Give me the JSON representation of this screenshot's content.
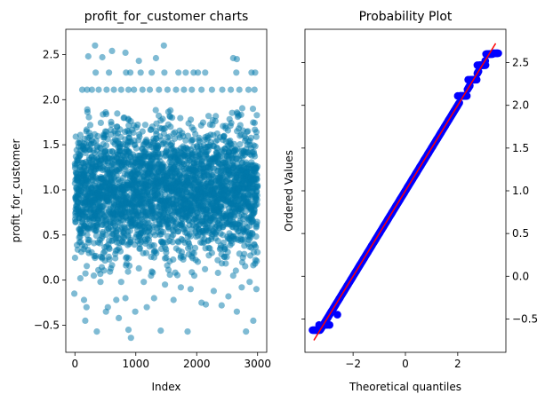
{
  "chart_data": [
    {
      "type": "scatter",
      "title": "profit_for_customer charts",
      "xlabel": "Index",
      "ylabel": "profit_for_customer",
      "xlim": [
        -150,
        3150
      ],
      "ylim": [
        -0.8,
        2.78
      ],
      "x_ticks": [
        0,
        1000,
        2000,
        3000
      ],
      "x_tick_labels": [
        "0",
        "1000",
        "2000",
        "3000"
      ],
      "y_ticks": [
        -0.5,
        0.0,
        0.5,
        1.0,
        1.5,
        2.0,
        2.5
      ],
      "y_tick_labels": [
        "−0.5",
        "0.0",
        "0.5",
        "1.0",
        "1.5",
        "2.0",
        "2.5"
      ],
      "marker_color": "#0077aa",
      "marker_alpha": 0.5,
      "n_points": 3000,
      "distribution": {
        "mean": 1.0,
        "std": 0.5,
        "min": -0.63,
        "max": 2.61
      },
      "points": [
        [
          120,
          2.11
        ],
        [
          200,
          2.11
        ],
        [
          280,
          2.11
        ],
        [
          390,
          2.11
        ],
        [
          520,
          2.11
        ],
        [
          640,
          2.11
        ],
        [
          760,
          2.11
        ],
        [
          880,
          2.11
        ],
        [
          970,
          2.11
        ],
        [
          1110,
          2.11
        ],
        [
          1230,
          2.11
        ],
        [
          1380,
          2.11
        ],
        [
          1520,
          2.11
        ],
        [
          1660,
          2.11
        ],
        [
          1790,
          2.11
        ],
        [
          1920,
          2.11
        ],
        [
          2080,
          2.11
        ],
        [
          2250,
          2.11
        ],
        [
          2420,
          2.11
        ],
        [
          2560,
          2.11
        ],
        [
          2700,
          2.11
        ],
        [
          2850,
          2.11
        ],
        [
          2950,
          2.11
        ],
        [
          340,
          2.3
        ],
        [
          560,
          2.3
        ],
        [
          840,
          2.3
        ],
        [
          910,
          2.3
        ],
        [
          1080,
          2.3
        ],
        [
          1260,
          2.3
        ],
        [
          1470,
          2.3
        ],
        [
          1700,
          2.3
        ],
        [
          1820,
          2.3
        ],
        [
          1950,
          2.3
        ],
        [
          2020,
          2.3
        ],
        [
          2140,
          2.3
        ],
        [
          2650,
          2.3
        ],
        [
          2900,
          2.3
        ],
        [
          2960,
          2.3
        ],
        [
          220,
          2.48
        ],
        [
          450,
          2.47
        ],
        [
          1330,
          2.46
        ],
        [
          2600,
          2.46
        ],
        [
          2660,
          2.45
        ],
        [
          330,
          2.6
        ],
        [
          610,
          2.54
        ],
        [
          830,
          2.52
        ],
        [
          1460,
          2.6
        ],
        [
          1050,
          2.43
        ],
        [
          -10,
          -0.15
        ],
        [
          90,
          0.02
        ],
        [
          150,
          -0.22
        ],
        [
          170,
          -0.45
        ],
        [
          190,
          -0.3
        ],
        [
          310,
          0.05
        ],
        [
          360,
          -0.57
        ],
        [
          420,
          -0.02
        ],
        [
          510,
          -0.35
        ],
        [
          540,
          -0.3
        ],
        [
          590,
          0.13
        ],
        [
          680,
          -0.22
        ],
        [
          720,
          -0.42
        ],
        [
          760,
          -0.02
        ],
        [
          830,
          -0.2
        ],
        [
          880,
          -0.55
        ],
        [
          920,
          -0.64
        ],
        [
          990,
          -0.35
        ],
        [
          1050,
          0.13
        ],
        [
          1130,
          -0.02
        ],
        [
          1180,
          -0.3
        ],
        [
          1250,
          0.05
        ],
        [
          1300,
          -0.2
        ],
        [
          1410,
          -0.56
        ],
        [
          1480,
          -0.05
        ],
        [
          1560,
          0.06
        ],
        [
          1620,
          -0.22
        ],
        [
          1740,
          -0.08
        ],
        [
          1850,
          -0.57
        ],
        [
          1900,
          -0.1
        ],
        [
          1960,
          0.05
        ],
        [
          2080,
          -0.25
        ],
        [
          2150,
          -0.27
        ],
        [
          2280,
          -0.12
        ],
        [
          2350,
          0.08
        ],
        [
          2410,
          -0.28
        ],
        [
          2520,
          -0.18
        ],
        [
          2600,
          0.05
        ],
        [
          2660,
          -0.35
        ],
        [
          2740,
          -0.08
        ],
        [
          2810,
          -0.57
        ],
        [
          2870,
          -0.02
        ],
        [
          2930,
          -0.45
        ],
        [
          2980,
          -0.1
        ]
      ]
    },
    {
      "type": "scatter",
      "title": "Probability Plot",
      "xlabel": "Theoretical quantiles",
      "ylabel": "Ordered Values",
      "xlim": [
        -3.84,
        3.84
      ],
      "ylim": [
        -0.89,
        2.89
      ],
      "x_ticks": [
        -2,
        0,
        2
      ],
      "x_tick_labels": [
        "−2",
        "0",
        "2"
      ],
      "y_ticks": [
        -0.5,
        0.0,
        0.5,
        1.0,
        1.5,
        2.0,
        2.5
      ],
      "y_tick_labels": [
        "−0.5",
        "0.0",
        "0.5",
        "1.0",
        "1.5",
        "2.0",
        "2.5"
      ],
      "y_axis_side": "right",
      "marker_color": "#0000ff",
      "fit_line_color": "#ff0000",
      "fit_line": {
        "slope": 0.5,
        "intercept": 1.0
      },
      "n_points": 3000,
      "min_value": -0.63,
      "max_value": 2.61,
      "plateau_values": [
        2.11,
        2.3,
        2.47,
        2.6
      ]
    }
  ]
}
